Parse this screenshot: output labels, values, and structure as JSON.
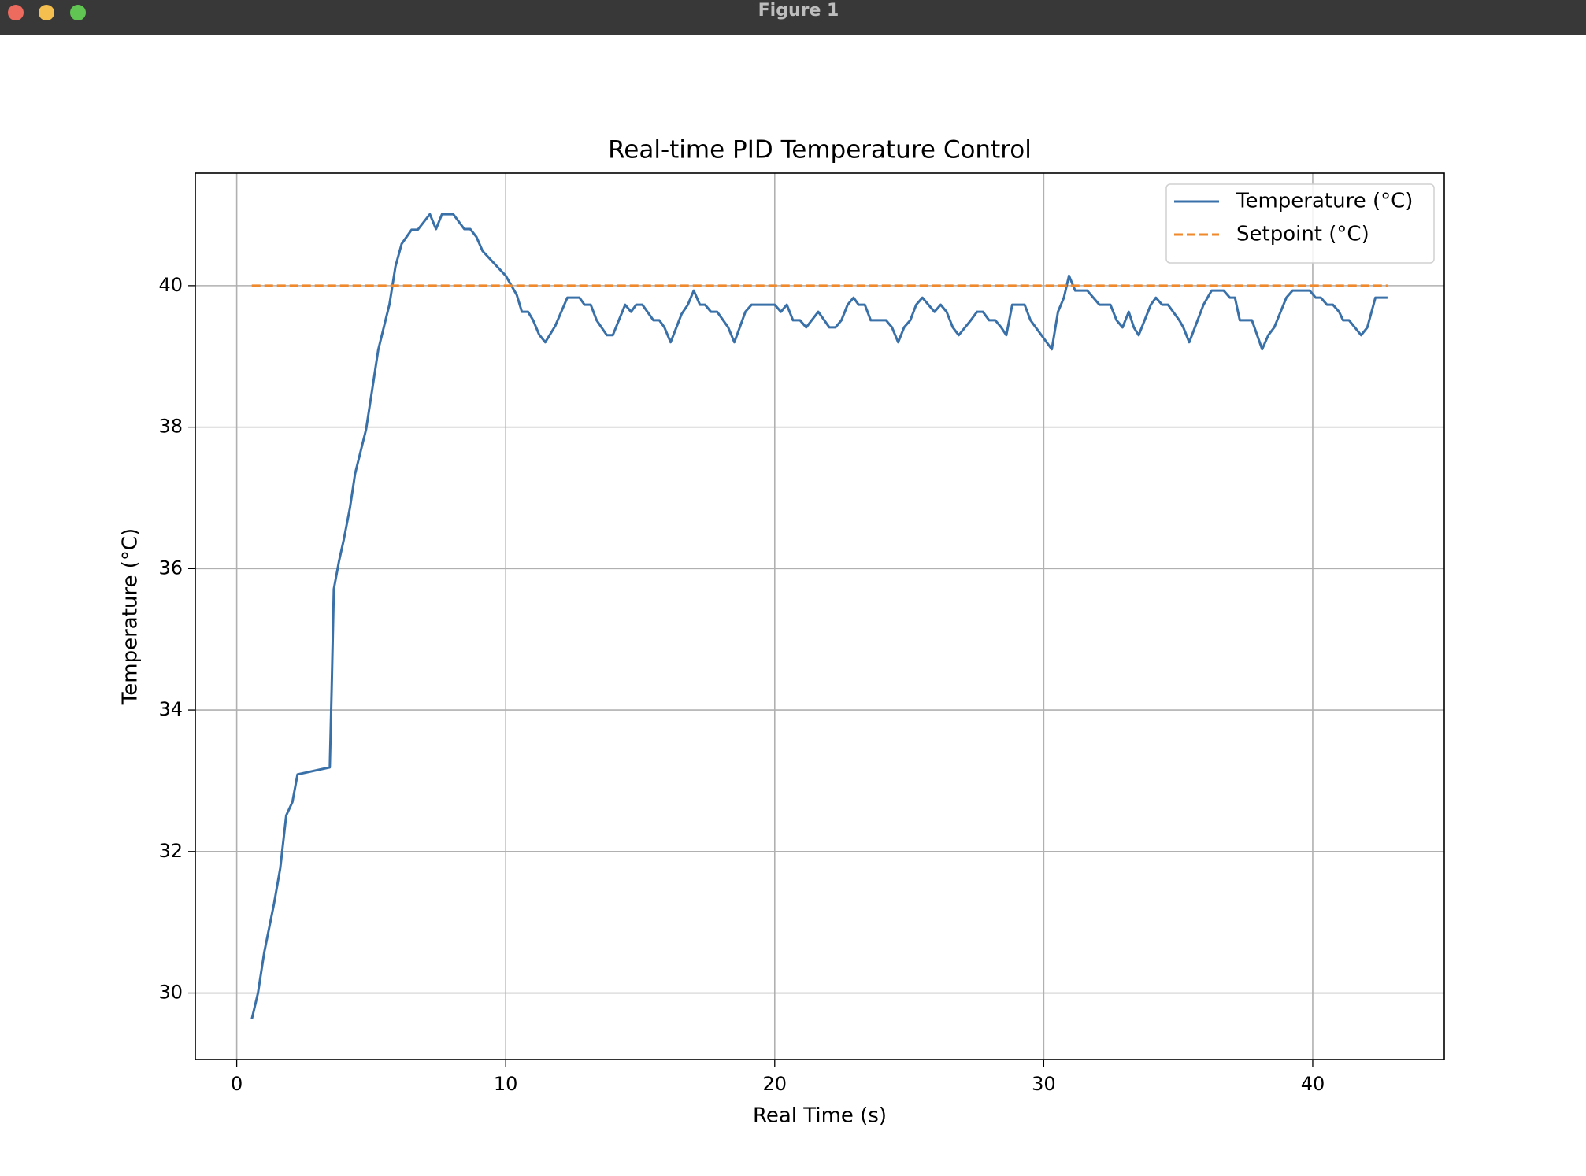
{
  "window": {
    "title": "Figure 1"
  },
  "chart_data": {
    "type": "line",
    "title": "Real-time PID Temperature Control",
    "xlabel": "Real Time (s)",
    "ylabel": "Temperature (°C)",
    "xlim": [
      -1.54,
      44.89
    ],
    "ylim": [
      29.06,
      41.59
    ],
    "xticks": [
      0,
      10,
      20,
      30,
      40
    ],
    "yticks": [
      30,
      32,
      34,
      36,
      38,
      40
    ],
    "grid": true,
    "legend": "upper right",
    "series": [
      {
        "name": "Temperature (°C)",
        "color": "#3a70a8",
        "style": "solid",
        "x": [
          0.56,
          0.79,
          1.02,
          1.39,
          1.62,
          1.84,
          2.07,
          2.26,
          3.46,
          3.53,
          3.61,
          3.8,
          3.98,
          4.21,
          4.4,
          4.81,
          5.04,
          5.26,
          5.68,
          5.9,
          6.13,
          6.5,
          6.73,
          7.18,
          7.41,
          7.63,
          8.05,
          8.46,
          8.68,
          8.91,
          9.14,
          10.0,
          10.41,
          10.6,
          10.83,
          11.02,
          11.24,
          11.47,
          11.84,
          12.29,
          12.74,
          12.93,
          13.16,
          13.38,
          13.76,
          13.98,
          14.44,
          14.66,
          14.85,
          15.08,
          15.49,
          15.71,
          15.9,
          16.13,
          16.54,
          16.77,
          16.99,
          17.22,
          17.41,
          17.63,
          17.86,
          18.27,
          18.5,
          18.91,
          19.14,
          20.0,
          20.23,
          20.45,
          20.68,
          20.94,
          21.17,
          21.62,
          22.03,
          22.26,
          22.48,
          22.71,
          22.93,
          23.12,
          23.35,
          23.57,
          24.14,
          24.36,
          24.59,
          24.81,
          25.04,
          25.26,
          25.49,
          25.94,
          26.17,
          26.39,
          26.62,
          26.84,
          27.29,
          27.52,
          27.74,
          27.97,
          28.2,
          28.42,
          28.61,
          28.83,
          29.29,
          29.51,
          30.3,
          30.53,
          30.75,
          30.94,
          31.17,
          31.62,
          32.07,
          32.48,
          32.71,
          32.93,
          33.16,
          33.35,
          33.53,
          33.98,
          34.17,
          34.4,
          34.62,
          35.04,
          35.19,
          35.41,
          35.94,
          36.24,
          36.69,
          36.92,
          37.11,
          37.29,
          37.74,
          38.12,
          38.35,
          38.57,
          39.02,
          39.25,
          39.89,
          40.11,
          40.3,
          40.53,
          40.75,
          40.98,
          41.13,
          41.35,
          41.8,
          42.03,
          42.33,
          42.78
        ],
        "values": [
          29.63,
          30.0,
          30.57,
          31.27,
          31.77,
          32.51,
          32.7,
          33.09,
          33.19,
          34.31,
          35.71,
          36.1,
          36.41,
          36.86,
          37.34,
          37.97,
          38.54,
          39.09,
          39.74,
          40.27,
          40.59,
          40.79,
          40.79,
          41.01,
          40.8,
          41.01,
          41.01,
          40.8,
          40.8,
          40.69,
          40.49,
          40.14,
          39.87,
          39.63,
          39.63,
          39.51,
          39.31,
          39.2,
          39.43,
          39.83,
          39.83,
          39.73,
          39.73,
          39.51,
          39.3,
          39.3,
          39.73,
          39.63,
          39.73,
          39.73,
          39.51,
          39.51,
          39.41,
          39.2,
          39.6,
          39.73,
          39.93,
          39.73,
          39.73,
          39.63,
          39.63,
          39.41,
          39.2,
          39.63,
          39.73,
          39.73,
          39.63,
          39.73,
          39.51,
          39.51,
          39.41,
          39.63,
          39.41,
          39.41,
          39.51,
          39.73,
          39.83,
          39.73,
          39.73,
          39.51,
          39.51,
          39.41,
          39.2,
          39.41,
          39.51,
          39.73,
          39.83,
          39.63,
          39.73,
          39.63,
          39.41,
          39.3,
          39.51,
          39.63,
          39.63,
          39.51,
          39.51,
          39.41,
          39.3,
          39.73,
          39.73,
          39.51,
          39.1,
          39.63,
          39.83,
          40.14,
          39.93,
          39.93,
          39.73,
          39.73,
          39.51,
          39.41,
          39.63,
          39.41,
          39.3,
          39.73,
          39.83,
          39.73,
          39.73,
          39.51,
          39.41,
          39.2,
          39.73,
          39.93,
          39.93,
          39.83,
          39.83,
          39.51,
          39.51,
          39.1,
          39.3,
          39.41,
          39.83,
          39.93,
          39.93,
          39.83,
          39.83,
          39.73,
          39.73,
          39.63,
          39.51,
          39.51,
          39.3,
          39.41,
          39.83,
          39.83
        ]
      },
      {
        "name": "Setpoint (°C)",
        "color": "#f0892c",
        "style": "dashed",
        "x": [
          0.56,
          42.78
        ],
        "values": [
          40,
          40
        ]
      }
    ]
  }
}
